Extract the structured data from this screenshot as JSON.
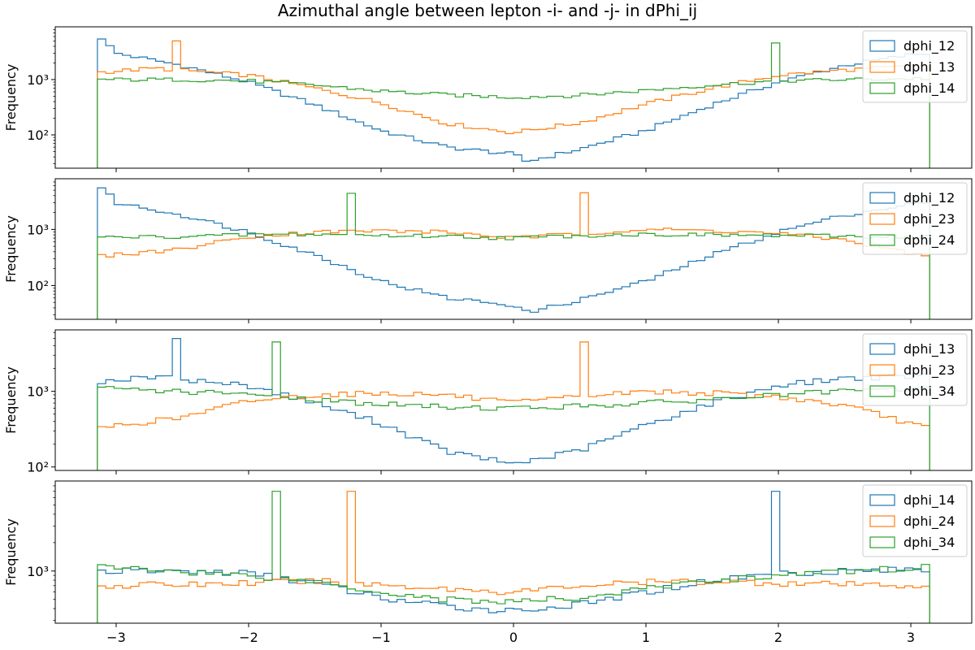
{
  "figure": {
    "title": "Azimuthal angle between lepton -i- and -j- in dPhi_ij"
  },
  "colors": {
    "blue": "#1f77b4",
    "orange": "#ff7f0e",
    "green": "#2ca02c"
  },
  "chart_data": [
    {
      "type": "step-histogram",
      "title": "",
      "xlabel": "",
      "ylabel": "Frequency",
      "y_scale": "log",
      "xlim": [
        -3.46,
        3.46
      ],
      "ylim": [
        25,
        9000
      ],
      "xticks": [],
      "yticks": [
        {
          "value": 100,
          "label": "10²"
        },
        {
          "value": 1000,
          "label": "10³"
        }
      ],
      "legend_position": "top-right",
      "series": [
        {
          "name": "dphi_12",
          "color": "blue",
          "points": [
            [
              -3.14,
              6800
            ],
            [
              -3.0,
              3000
            ],
            [
              -2.5,
              1800
            ],
            [
              -2.0,
              900
            ],
            [
              -1.5,
              350
            ],
            [
              -1.0,
              120
            ],
            [
              -0.5,
              60
            ],
            [
              0.0,
              45
            ],
            [
              0.1,
              33
            ],
            [
              0.5,
              55
            ],
            [
              1.0,
              120
            ],
            [
              1.5,
              350
            ],
            [
              2.0,
              900
            ],
            [
              2.5,
              1800
            ],
            [
              3.0,
              2800
            ],
            [
              3.14,
              3000
            ]
          ],
          "spikes": []
        },
        {
          "name": "dphi_13",
          "color": "orange",
          "points": [
            [
              -3.14,
              1350
            ],
            [
              -2.7,
              1600
            ],
            [
              -2.0,
              1200
            ],
            [
              -1.5,
              700
            ],
            [
              -1.0,
              380
            ],
            [
              -0.5,
              160
            ],
            [
              0.0,
              110
            ],
            [
              0.5,
              165
            ],
            [
              1.0,
              360
            ],
            [
              1.5,
              700
            ],
            [
              2.0,
              1200
            ],
            [
              2.5,
              1500
            ],
            [
              3.14,
              1800
            ]
          ],
          "spikes": [
            {
              "x": -2.55,
              "value": 5000
            }
          ]
        },
        {
          "name": "dphi_14",
          "color": "green",
          "points": [
            [
              -3.14,
              1000
            ],
            [
              -2.5,
              1000
            ],
            [
              -2.0,
              950
            ],
            [
              -1.5,
              800
            ],
            [
              -1.0,
              620
            ],
            [
              -0.5,
              530
            ],
            [
              0.0,
              480
            ],
            [
              0.5,
              520
            ],
            [
              1.0,
              640
            ],
            [
              1.5,
              800
            ],
            [
              2.0,
              950
            ],
            [
              2.5,
              1000
            ],
            [
              3.14,
              1050
            ]
          ],
          "spikes": [
            {
              "x": 1.96,
              "value": 4600
            }
          ]
        }
      ]
    },
    {
      "type": "step-histogram",
      "title": "",
      "xlabel": "",
      "ylabel": "Frequency",
      "y_scale": "log",
      "xlim": [
        -3.46,
        3.46
      ],
      "ylim": [
        25,
        8000
      ],
      "xticks": [],
      "yticks": [
        {
          "value": 100,
          "label": "10²"
        },
        {
          "value": 1000,
          "label": "10³"
        }
      ],
      "legend_position": "top-right",
      "series": [
        {
          "name": "dphi_12",
          "color": "blue",
          "points": [
            [
              -3.14,
              6800
            ],
            [
              -3.0,
              3000
            ],
            [
              -2.5,
              1800
            ],
            [
              -2.0,
              900
            ],
            [
              -1.5,
              350
            ],
            [
              -1.0,
              120
            ],
            [
              -0.5,
              60
            ],
            [
              0.0,
              45
            ],
            [
              0.1,
              33
            ],
            [
              0.5,
              55
            ],
            [
              1.0,
              120
            ],
            [
              1.5,
              350
            ],
            [
              2.0,
              900
            ],
            [
              2.5,
              1800
            ],
            [
              3.0,
              2800
            ],
            [
              3.14,
              3000
            ]
          ],
          "spikes": []
        },
        {
          "name": "dphi_23",
          "color": "orange",
          "points": [
            [
              -3.14,
              330
            ],
            [
              -2.5,
              450
            ],
            [
              -2.0,
              750
            ],
            [
              -1.5,
              900
            ],
            [
              -1.0,
              950
            ],
            [
              -0.5,
              900
            ],
            [
              0.0,
              700
            ],
            [
              0.5,
              850
            ],
            [
              1.0,
              1000
            ],
            [
              1.5,
              950
            ],
            [
              2.0,
              850
            ],
            [
              2.5,
              650
            ],
            [
              3.0,
              380
            ],
            [
              3.14,
              320
            ]
          ],
          "spikes": [
            {
              "x": 0.55,
              "value": 4500
            }
          ]
        },
        {
          "name": "dphi_24",
          "color": "green",
          "points": [
            [
              -3.14,
              720
            ],
            [
              -2.5,
              750
            ],
            [
              -2.0,
              800
            ],
            [
              -1.5,
              820
            ],
            [
              -1.0,
              780
            ],
            [
              -0.5,
              760
            ],
            [
              0.0,
              700
            ],
            [
              0.5,
              780
            ],
            [
              1.0,
              820
            ],
            [
              1.5,
              800
            ],
            [
              2.0,
              780
            ],
            [
              2.5,
              760
            ],
            [
              3.14,
              740
            ]
          ],
          "spikes": [
            {
              "x": -1.25,
              "value": 4400
            }
          ]
        }
      ]
    },
    {
      "type": "step-histogram",
      "title": "",
      "xlabel": "",
      "ylabel": "Frequency",
      "y_scale": "log",
      "xlim": [
        -3.46,
        3.46
      ],
      "ylim": [
        90,
        6500
      ],
      "xticks": [],
      "yticks": [
        {
          "value": 100,
          "label": "10²"
        },
        {
          "value": 1000,
          "label": "10³"
        }
      ],
      "legend_position": "top-right",
      "series": [
        {
          "name": "dphi_13",
          "color": "blue",
          "points": [
            [
              -3.14,
              1350
            ],
            [
              -2.7,
              1550
            ],
            [
              -2.0,
              1200
            ],
            [
              -1.5,
              700
            ],
            [
              -1.0,
              380
            ],
            [
              -0.5,
              160
            ],
            [
              0.0,
              110
            ],
            [
              0.5,
              165
            ],
            [
              1.0,
              360
            ],
            [
              1.5,
              700
            ],
            [
              2.0,
              1200
            ],
            [
              2.5,
              1500
            ],
            [
              3.14,
              1600
            ]
          ],
          "spikes": [
            {
              "x": -2.55,
              "value": 5000
            }
          ]
        },
        {
          "name": "dphi_23",
          "color": "orange",
          "points": [
            [
              -3.14,
              330
            ],
            [
              -2.5,
              450
            ],
            [
              -2.0,
              750
            ],
            [
              -1.5,
              900
            ],
            [
              -1.0,
              950
            ],
            [
              -0.5,
              900
            ],
            [
              0.0,
              700
            ],
            [
              0.5,
              850
            ],
            [
              1.0,
              1000
            ],
            [
              1.5,
              950
            ],
            [
              2.0,
              850
            ],
            [
              2.5,
              650
            ],
            [
              3.0,
              380
            ],
            [
              3.14,
              320
            ]
          ],
          "spikes": [
            {
              "x": 0.55,
              "value": 4500
            }
          ]
        },
        {
          "name": "dphi_34",
          "color": "green",
          "points": [
            [
              -3.14,
              1100
            ],
            [
              -2.5,
              1000
            ],
            [
              -2.0,
              900
            ],
            [
              -1.5,
              780
            ],
            [
              -1.0,
              680
            ],
            [
              -0.5,
              620
            ],
            [
              0.0,
              600
            ],
            [
              0.5,
              640
            ],
            [
              1.0,
              700
            ],
            [
              1.5,
              780
            ],
            [
              2.0,
              900
            ],
            [
              2.5,
              1000
            ],
            [
              3.14,
              1100
            ]
          ],
          "spikes": [
            {
              "x": -1.8,
              "value": 4500
            }
          ]
        }
      ]
    },
    {
      "type": "step-histogram",
      "title": "",
      "xlabel": "",
      "ylabel": "Frequency",
      "y_scale": "log",
      "xlim": [
        -3.46,
        3.46
      ],
      "ylim": [
        280,
        9000
      ],
      "xticks": [
        {
          "value": -3,
          "label": "−3"
        },
        {
          "value": -2,
          "label": "−2"
        },
        {
          "value": -1,
          "label": "−1"
        },
        {
          "value": 0,
          "label": "0"
        },
        {
          "value": 1,
          "label": "1"
        },
        {
          "value": 2,
          "label": "2"
        },
        {
          "value": 3,
          "label": "3"
        }
      ],
      "yticks": [
        {
          "value": 1000,
          "label": "10³"
        }
      ],
      "legend_position": "top-right",
      "series": [
        {
          "name": "dphi_14",
          "color": "blue",
          "points": [
            [
              -3.14,
              1000
            ],
            [
              -2.5,
              1000
            ],
            [
              -2.0,
              950
            ],
            [
              -1.5,
              750
            ],
            [
              -1.0,
              520
            ],
            [
              -0.5,
              420
            ],
            [
              0.0,
              380
            ],
            [
              0.5,
              440
            ],
            [
              1.0,
              600
            ],
            [
              1.5,
              800
            ],
            [
              2.0,
              950
            ],
            [
              2.5,
              1000
            ],
            [
              3.14,
              1050
            ]
          ],
          "spikes": [
            {
              "x": 1.96,
              "value": 7000
            }
          ]
        },
        {
          "name": "dphi_24",
          "color": "orange",
          "points": [
            [
              -3.14,
              700
            ],
            [
              -2.5,
              720
            ],
            [
              -2.0,
              750
            ],
            [
              -1.5,
              780
            ],
            [
              -1.0,
              720
            ],
            [
              -0.5,
              650
            ],
            [
              0.0,
              600
            ],
            [
              0.5,
              700
            ],
            [
              1.0,
              760
            ],
            [
              1.5,
              780
            ],
            [
              2.0,
              750
            ],
            [
              2.5,
              720
            ],
            [
              3.14,
              700
            ]
          ],
          "spikes": [
            {
              "x": -1.25,
              "value": 7000
            }
          ]
        },
        {
          "name": "dphi_34",
          "color": "green",
          "points": [
            [
              -3.14,
              1100
            ],
            [
              -2.5,
              1000
            ],
            [
              -2.0,
              900
            ],
            [
              -1.5,
              780
            ],
            [
              -1.0,
              600
            ],
            [
              -0.5,
              500
            ],
            [
              0.0,
              470
            ],
            [
              0.5,
              520
            ],
            [
              1.0,
              650
            ],
            [
              1.5,
              800
            ],
            [
              2.0,
              900
            ],
            [
              2.5,
              1000
            ],
            [
              3.14,
              1100
            ]
          ],
          "spikes": [
            {
              "x": -1.8,
              "value": 7000
            }
          ]
        }
      ]
    }
  ]
}
